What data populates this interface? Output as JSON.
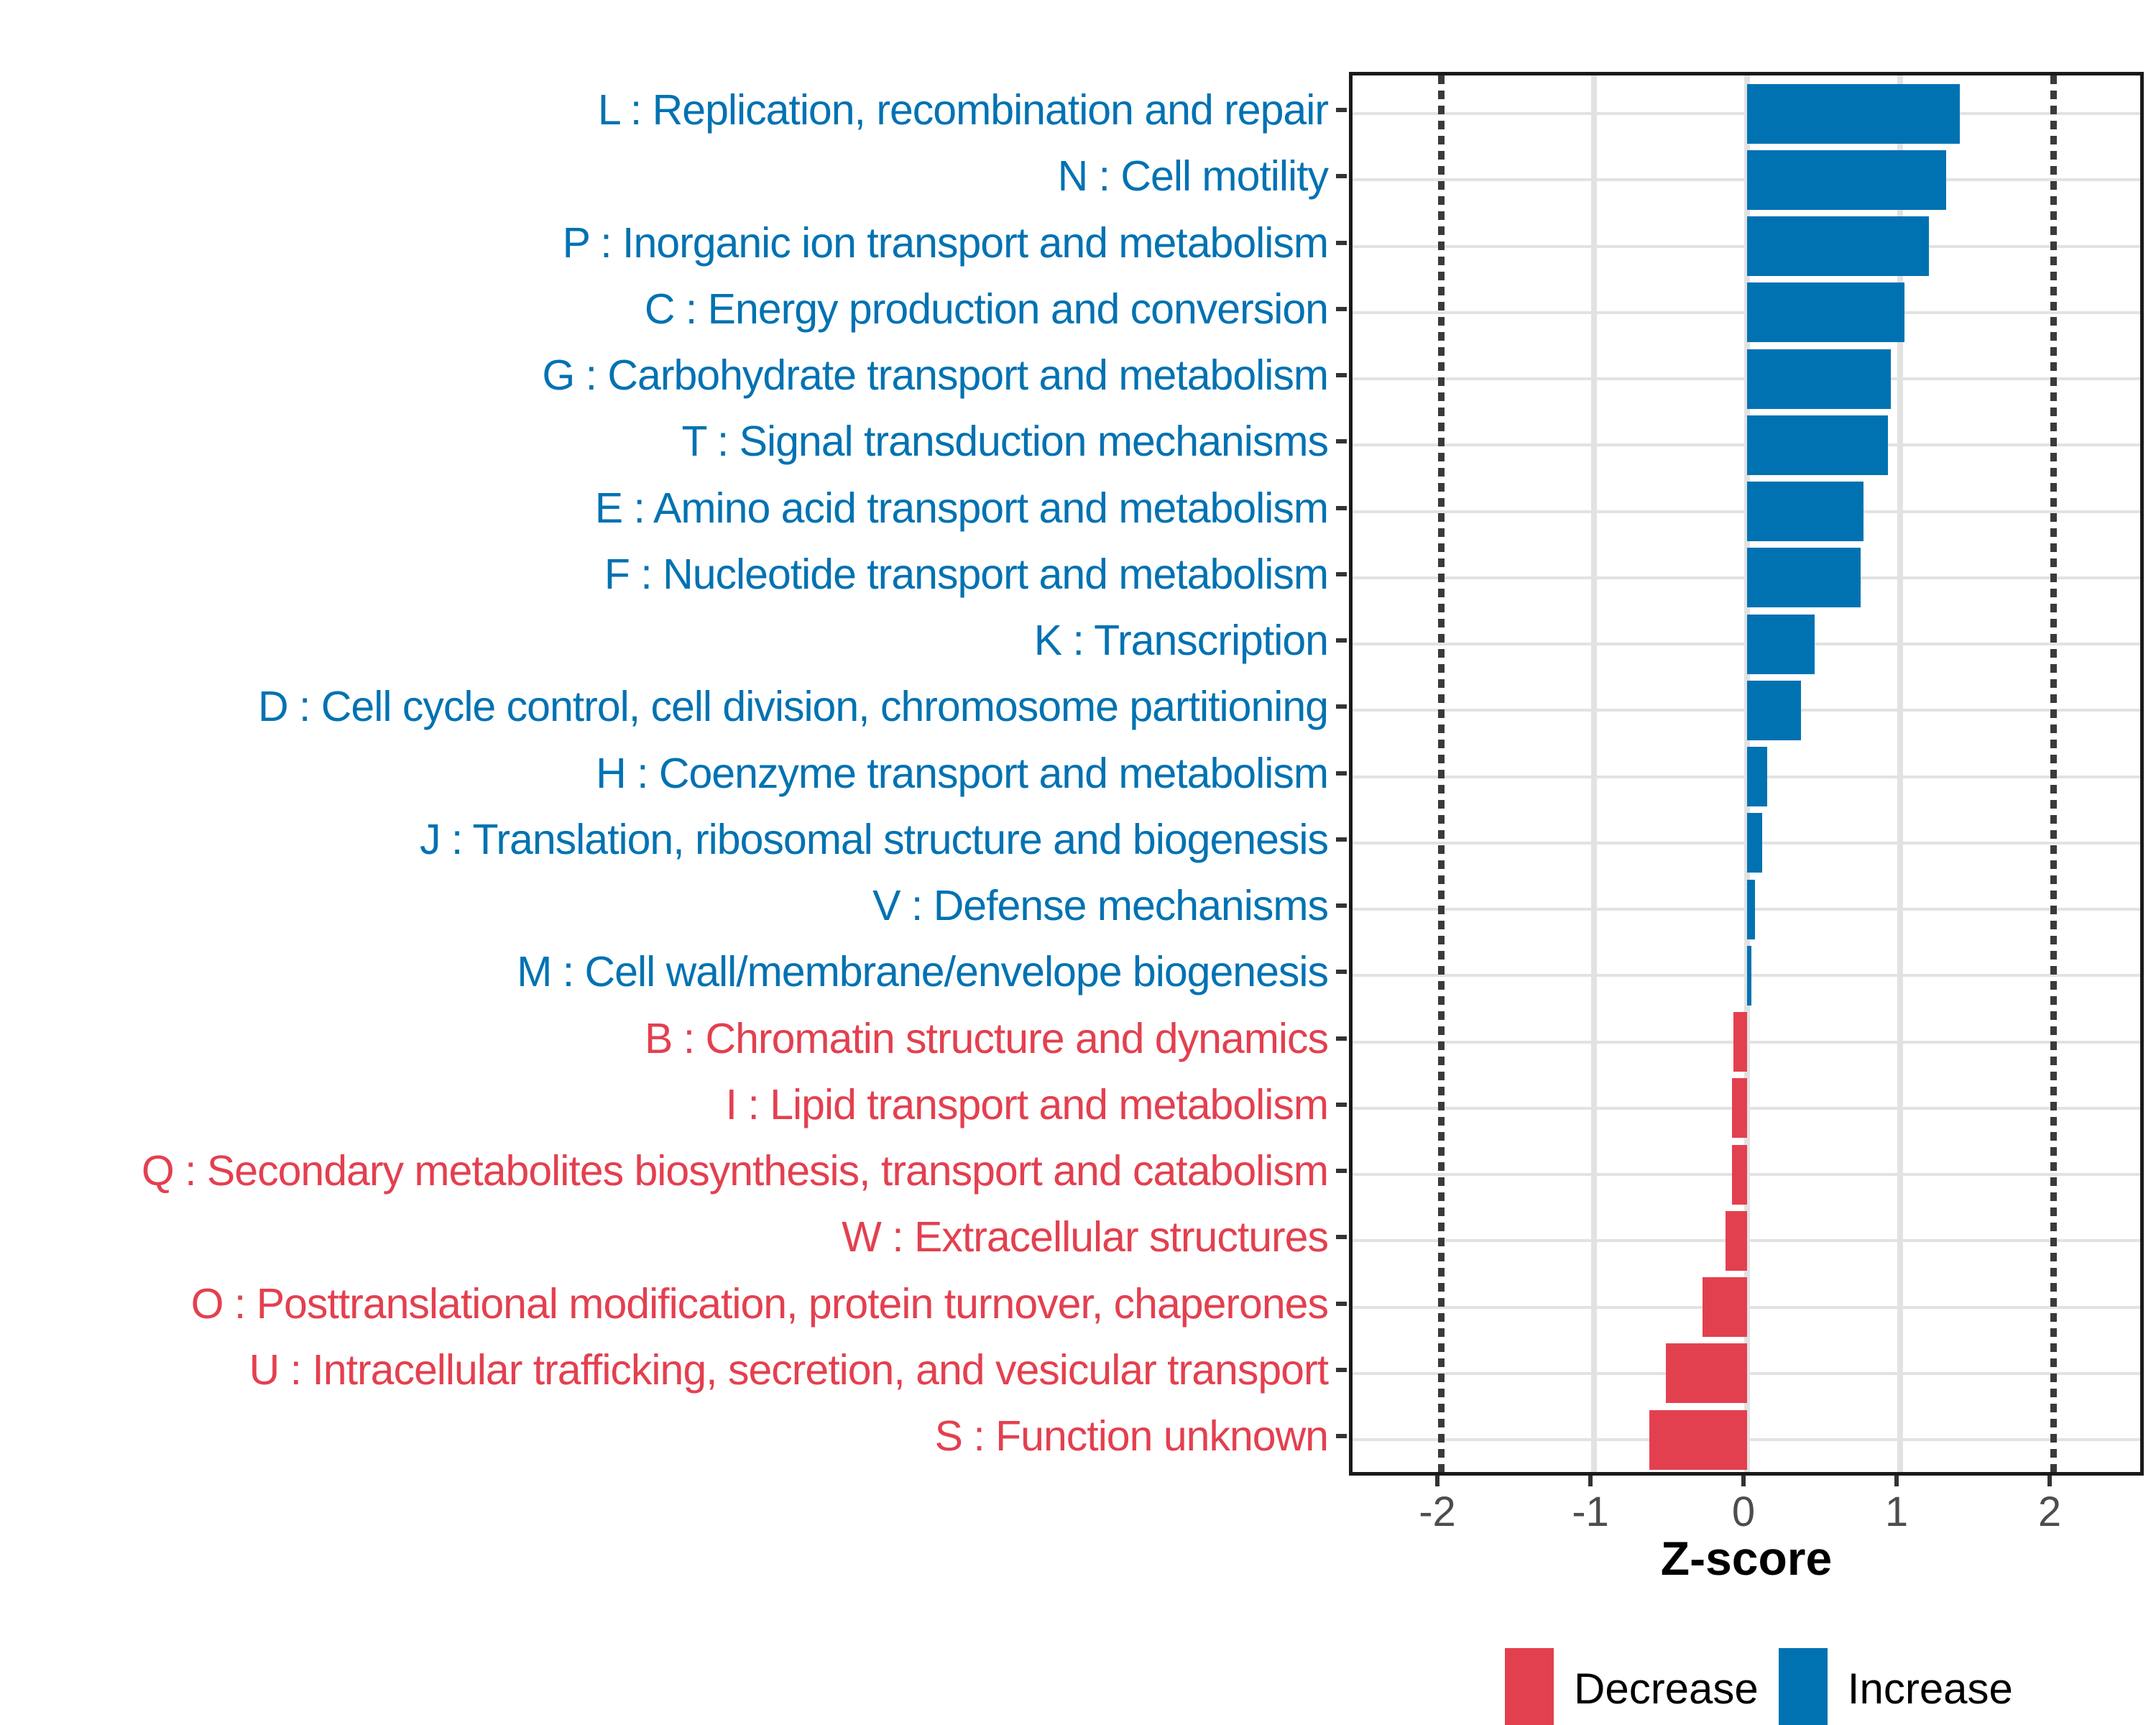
{
  "chart_data": {
    "type": "bar",
    "orientation": "horizontal",
    "xlabel": "Z-score",
    "x_ticks": [
      "-2",
      "-1",
      "0",
      "1",
      "2"
    ],
    "x_tick_values": [
      -2,
      -1,
      0,
      1,
      2
    ],
    "x_domain": [
      -2.58,
      2.61
    ],
    "reference_lines_dotted": [
      -2,
      2
    ],
    "grid": "on",
    "legend_position": "bottom",
    "legend": [
      {
        "label": "Decrease",
        "color": "#e3404f"
      },
      {
        "label": "Increase",
        "color": "#0072b2"
      }
    ],
    "series": [
      {
        "label": "L : Replication, recombination and repair",
        "value": 1.39,
        "direction": "Increase"
      },
      {
        "label": "N : Cell motility",
        "value": 1.3,
        "direction": "Increase"
      },
      {
        "label": "P : Inorganic ion transport and metabolism",
        "value": 1.19,
        "direction": "Increase"
      },
      {
        "label": "C : Energy production and conversion",
        "value": 1.03,
        "direction": "Increase"
      },
      {
        "label": "G : Carbohydrate transport and metabolism",
        "value": 0.94,
        "direction": "Increase"
      },
      {
        "label": "T : Signal transduction mechanisms",
        "value": 0.92,
        "direction": "Increase"
      },
      {
        "label": "E : Amino acid transport and metabolism",
        "value": 0.76,
        "direction": "Increase"
      },
      {
        "label": "F : Nucleotide transport and metabolism",
        "value": 0.74,
        "direction": "Increase"
      },
      {
        "label": "K : Transcription",
        "value": 0.44,
        "direction": "Increase"
      },
      {
        "label": "D : Cell cycle control, cell division, chromosome partitioning",
        "value": 0.35,
        "direction": "Increase"
      },
      {
        "label": "H : Coenzyme transport and metabolism",
        "value": 0.13,
        "direction": "Increase"
      },
      {
        "label": "J : Translation, ribosomal structure and biogenesis",
        "value": 0.1,
        "direction": "Increase"
      },
      {
        "label": "V : Defense mechanisms",
        "value": 0.05,
        "direction": "Increase"
      },
      {
        "label": "M : Cell wall/membrane/envelope biogenesis",
        "value": 0.03,
        "direction": "Increase"
      },
      {
        "label": "B : Chromatin structure and dynamics",
        "value": -0.09,
        "direction": "Decrease"
      },
      {
        "label": "I : Lipid transport and metabolism",
        "value": -0.1,
        "direction": "Decrease"
      },
      {
        "label": "Q : Secondary metabolites biosynthesis, transport and catabolism",
        "value": -0.1,
        "direction": "Decrease"
      },
      {
        "label": "W : Extracellular structures",
        "value": -0.14,
        "direction": "Decrease"
      },
      {
        "label": "O : Posttranslational modification, protein turnover, chaperones",
        "value": -0.29,
        "direction": "Decrease"
      },
      {
        "label": "U : Intracellular trafficking, secretion, and vesicular transport",
        "value": -0.53,
        "direction": "Decrease"
      },
      {
        "label": "S : Function unknown",
        "value": -0.64,
        "direction": "Decrease"
      }
    ]
  },
  "colors": {
    "increase": "#0072b2",
    "decrease": "#e3404f",
    "gridline": "#e2e2e2",
    "axis_text": "#4d4d4d",
    "refline": "#3a3a3a"
  }
}
